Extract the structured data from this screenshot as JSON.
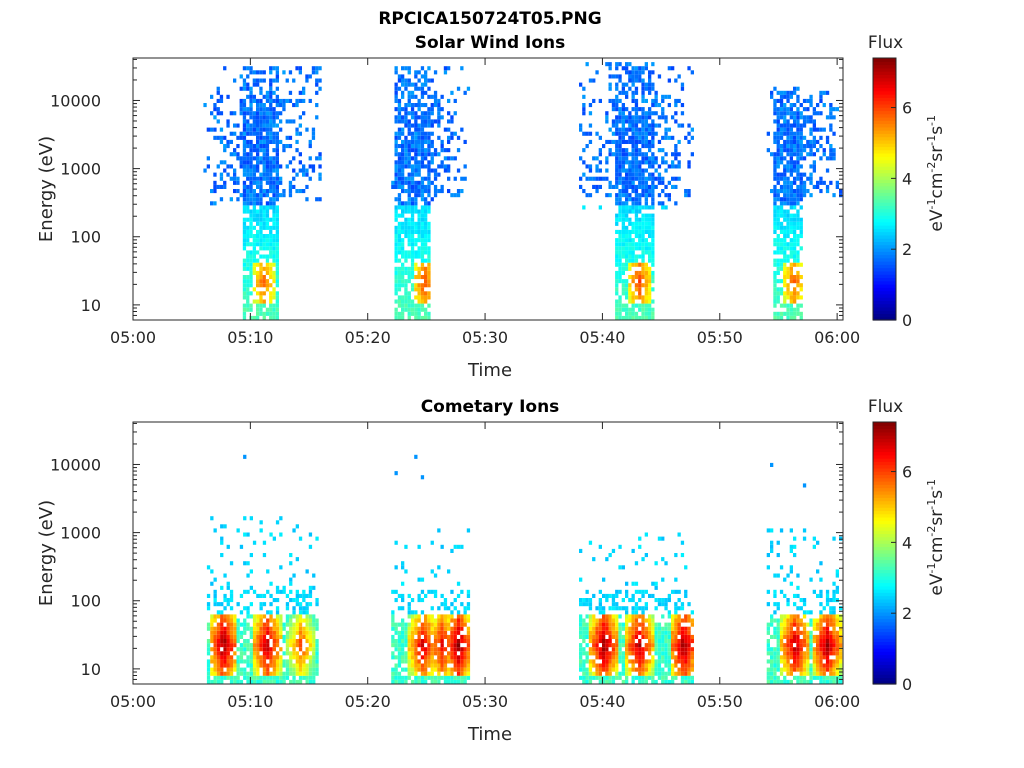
{
  "figure": {
    "title": "RPCICA150724T05.PNG"
  },
  "colormap": [
    "#00007f",
    "#0000ff",
    "#007fff",
    "#00ffff",
    "#7fff7f",
    "#ffff00",
    "#ff7f00",
    "#ff0000",
    "#7f0000"
  ],
  "chart_data": [
    {
      "type": "heatmap",
      "title": "Solar Wind Ions",
      "xlabel": "Time",
      "ylabel": "Energy (eV)",
      "x_ticks": [
        "05:00",
        "05:10",
        "05:20",
        "05:30",
        "05:40",
        "05:50",
        "06:00"
      ],
      "x_range_minutes": [
        0,
        60.5
      ],
      "y_ticks": [
        "10",
        "100",
        "1000",
        "10000"
      ],
      "y_scale": "log",
      "y_range": [
        6,
        42000
      ],
      "colorbar": {
        "label": "Flux",
        "units": "eV-1cm-2sr-1s-1",
        "ticks": [
          "0",
          "2",
          "4",
          "6"
        ],
        "range": [
          0,
          7.4
        ]
      },
      "bursts": [
        {
          "t_start": 6.0,
          "t_end": 15.8,
          "core_start": 9.3,
          "core_end": 12.4,
          "peak_time": 11.0,
          "peak_flux": 5.6,
          "high_energy_extent": 30000,
          "low_energy_extent": 300
        },
        {
          "t_start": 22.0,
          "t_end": 28.5,
          "core_start": 22.2,
          "core_end": 25.3,
          "peak_time": 24.7,
          "peak_flux": 5.8,
          "high_energy_extent": 30000,
          "low_energy_extent": 300
        },
        {
          "t_start": 38.0,
          "t_end": 47.8,
          "core_start": 41.0,
          "core_end": 44.2,
          "peak_time": 43.0,
          "peak_flux": 5.8,
          "high_energy_extent": 35000,
          "low_energy_extent": 250
        },
        {
          "t_start": 54.0,
          "t_end": 60.5,
          "core_start": 54.3,
          "core_end": 57.0,
          "peak_time": 56.2,
          "peak_flux": 5.6,
          "high_energy_extent": 15000,
          "low_energy_extent": 400
        }
      ]
    },
    {
      "type": "heatmap",
      "title": "Cometary Ions",
      "xlabel": "Time",
      "ylabel": "Energy (eV)",
      "x_ticks": [
        "05:00",
        "05:10",
        "05:20",
        "05:30",
        "05:40",
        "05:50",
        "06:00"
      ],
      "x_range_minutes": [
        0,
        60.5
      ],
      "y_ticks": [
        "10",
        "100",
        "1000",
        "10000"
      ],
      "y_scale": "log",
      "y_range": [
        6,
        42000
      ],
      "colorbar": {
        "label": "Flux",
        "units": "eV-1cm-2sr-1s-1",
        "ticks": [
          "0",
          "2",
          "4",
          "6"
        ],
        "range": [
          0,
          7.4
        ]
      },
      "bursts": [
        {
          "t_start": 6.3,
          "t_end": 15.8,
          "high_energy_extent": 1800,
          "peaks": [
            {
              "t": 7.6,
              "flux": 7.0
            },
            {
              "t": 11.3,
              "flux": 6.8
            },
            {
              "t": 14.2,
              "flux": 5.8
            }
          ]
        },
        {
          "t_start": 22.0,
          "t_end": 28.5,
          "high_energy_extent": 1200,
          "peaks": [
            {
              "t": 24.6,
              "flux": 6.6
            },
            {
              "t": 27.6,
              "flux": 7.0
            },
            {
              "t": 26.2,
              "flux": 6.4
            }
          ]
        },
        {
          "t_start": 38.0,
          "t_end": 47.8,
          "high_energy_extent": 1000,
          "peaks": [
            {
              "t": 40.0,
              "flux": 7.0
            },
            {
              "t": 43.0,
              "flux": 6.8
            },
            {
              "t": 46.8,
              "flux": 7.0
            }
          ]
        },
        {
          "t_start": 54.0,
          "t_end": 60.5,
          "high_energy_extent": 1200,
          "peaks": [
            {
              "t": 56.3,
              "flux": 6.8
            },
            {
              "t": 59.0,
              "flux": 6.9
            }
          ]
        }
      ]
    }
  ]
}
